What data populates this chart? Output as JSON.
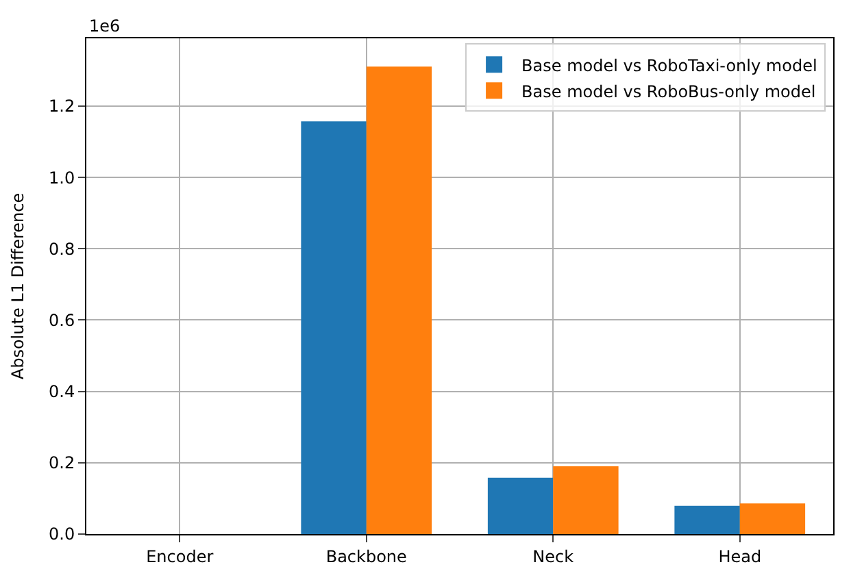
{
  "chart_data": {
    "type": "bar",
    "ylabel": "Absolute L1 Difference",
    "categories": [
      "Encoder",
      "Backbone",
      "Neck",
      "Head"
    ],
    "series": [
      {
        "name": "Base model vs RoboTaxi-only model",
        "color": "#1f77b4",
        "values": [
          0,
          1.157,
          0.158,
          0.079
        ]
      },
      {
        "name": "Base model vs RoboBus-only model",
        "color": "#ff7f0e",
        "values": [
          0,
          1.311,
          0.19,
          0.086
        ]
      }
    ],
    "ylim": [
      0,
      1.39
    ],
    "yticks": [
      {
        "value": 0,
        "label": "0.0"
      },
      0.2,
      0.4,
      0.6,
      0.8,
      {
        "value": 1,
        "label": "1.0"
      },
      1.2
    ],
    "annotations": [
      "1e6"
    ],
    "grid": true,
    "legend": "top right"
  }
}
